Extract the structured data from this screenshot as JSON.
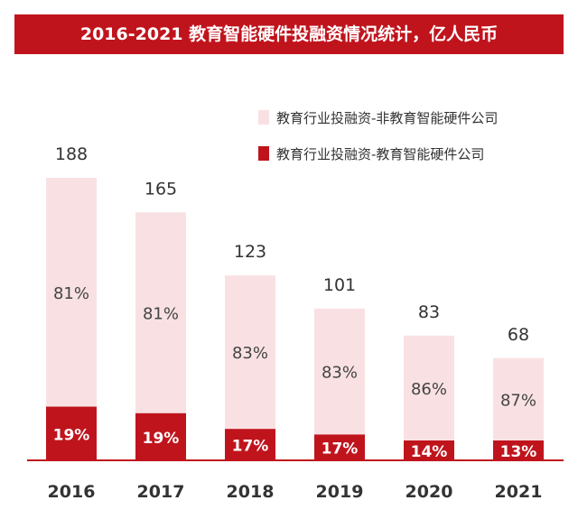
{
  "title": "2016-2021 教育智能硬件投融资情况统计，亿人民币",
  "colors": {
    "title_bg": "#c0141d",
    "title_text": "#ffffff",
    "light": "#f9e1e3",
    "dark": "#c0141d",
    "axis": "#c0141d",
    "text": "#333333"
  },
  "chart_data": {
    "type": "bar",
    "stacked": true,
    "categories": [
      "2016",
      "2017",
      "2018",
      "2019",
      "2020",
      "2021"
    ],
    "totals": [
      188,
      165,
      123,
      101,
      83,
      68
    ],
    "series": [
      {
        "name": "教育行业投融资-非教育智能硬件公司",
        "color": "#f9e1e3",
        "labels": [
          "81%",
          "81%",
          "83%",
          "83%",
          "86%",
          "87%"
        ]
      },
      {
        "name": "教育行业投融资-教育智能硬件公司",
        "color": "#c0141d",
        "labels": [
          "19%",
          "19%",
          "17%",
          "17%",
          "14%",
          "13%"
        ]
      }
    ],
    "legend_position": "top-right",
    "grid": false
  }
}
